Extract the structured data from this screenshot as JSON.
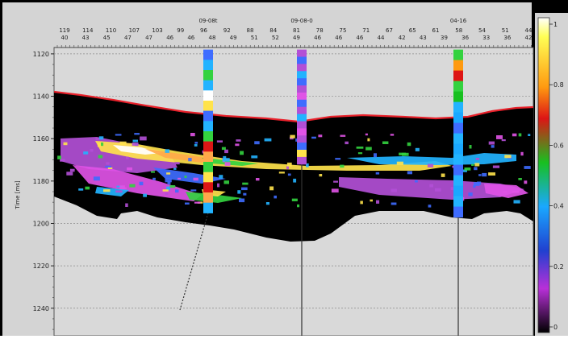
{
  "chart_data": {
    "type": "heatmap",
    "ylabel": "Time [ms]",
    "y_ticks": [
      "1120",
      "1140",
      "1160",
      "1180",
      "1200",
      "1220",
      "1240"
    ],
    "y_range": [
      1117,
      1253
    ],
    "x_top_row1": [
      "119",
      "114",
      "110",
      "107",
      "103",
      "99",
      "96",
      "92",
      "88",
      "84",
      "81",
      "78",
      "75",
      "71",
      "67",
      "65",
      "61",
      "58",
      "54",
      "51",
      "44"
    ],
    "x_top_row2": [
      "40",
      "43",
      "45",
      "47",
      "47",
      "46",
      "46",
      "48",
      "49",
      "51",
      "52",
      "49",
      "46",
      "46",
      "46",
      "44",
      "42",
      "43",
      "39",
      "36",
      "33",
      "36",
      "42"
    ],
    "wells": [
      {
        "label": "09-08t",
        "top_ms": 1118,
        "bottom_ms": 1195
      },
      {
        "label": "09-08-0",
        "top_ms": 1118,
        "bottom_ms": 1172
      },
      {
        "label": "04-16",
        "top_ms": 1118,
        "bottom_ms": 1197
      }
    ],
    "colorbar": {
      "ticks": [
        "1",
        "0.8",
        "0.6",
        "0.4",
        "0.2",
        "0"
      ],
      "range": [
        0,
        1
      ]
    },
    "colors": {
      "background": "#d4d4d4",
      "body": "#000000",
      "horizon": "#e8202a",
      "gridline": "#8a8a8a"
    }
  }
}
